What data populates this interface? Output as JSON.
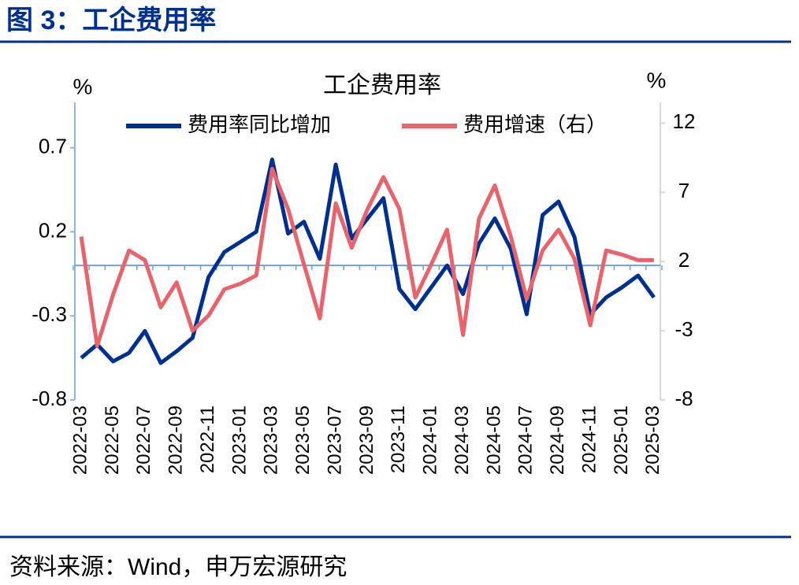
{
  "header": {
    "title": "图 3：工企费用率"
  },
  "source": "资料来源：Wind，申万宏源研究",
  "chart_data": {
    "type": "line",
    "title": "工企费用率",
    "y_label": "%",
    "y2_label": "%",
    "categories": [
      "2022-03",
      null,
      "2022-05",
      null,
      "2022-07",
      null,
      "2022-09",
      null,
      "2022-11",
      null,
      "2023-01",
      null,
      "2023-03",
      null,
      "2023-05",
      null,
      "2023-07",
      null,
      "2023-09",
      null,
      "2023-11",
      null,
      "2024-01",
      null,
      "2024-03",
      null,
      "2024-05",
      null,
      "2024-07",
      null,
      "2024-09",
      null,
      "2024-11",
      null,
      "2025-01",
      null,
      "2025-03"
    ],
    "series": [
      {
        "name": "费用率同比增加",
        "color": "#00308f",
        "axis": "y",
        "values": [
          -0.55,
          -0.47,
          -0.57,
          -0.52,
          -0.39,
          -0.58,
          -0.51,
          -0.43,
          -0.07,
          0.08,
          0.14,
          0.2,
          0.63,
          0.19,
          0.26,
          0.04,
          0.6,
          0.16,
          0.28,
          0.4,
          -0.14,
          -0.26,
          -0.13,
          0.0,
          -0.17,
          0.13,
          0.28,
          0.1,
          -0.29,
          0.3,
          0.38,
          0.17,
          -0.29,
          -0.19,
          -0.13,
          -0.06,
          -0.19
        ]
      },
      {
        "name": "费用增速（右）",
        "color": "#e8636b",
        "axis": "y2",
        "values": [
          3.8,
          -4.1,
          -0.4,
          2.8,
          2.1,
          -1.3,
          0.5,
          -3.0,
          -1.9,
          0.0,
          0.4,
          1.0,
          8.7,
          5.8,
          1.8,
          -2.1,
          6.2,
          3.0,
          5.8,
          8.1,
          5.8,
          -0.6,
          1.8,
          4.3,
          -3.3,
          5.1,
          7.5,
          3.8,
          -0.7,
          2.8,
          4.3,
          2.2,
          -2.6,
          2.8,
          2.5,
          2.1,
          2.1
        ]
      }
    ],
    "ylim": [
      -0.8,
      0.97
    ],
    "yticks": [
      -0.8,
      -0.3,
      0.2,
      0.7
    ],
    "y2lim": [
      -8,
      13.5
    ],
    "y2ticks": [
      -8,
      -3,
      2,
      7,
      12
    ],
    "hline": 0,
    "legend": "top"
  }
}
